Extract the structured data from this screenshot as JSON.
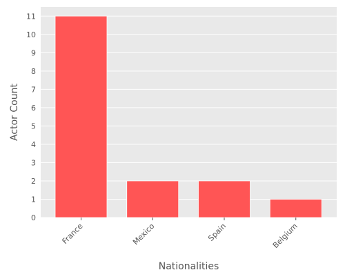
{
  "chart_data": {
    "type": "bar",
    "categories": [
      "France",
      "Mexico",
      "Spain",
      "Belgium"
    ],
    "values": [
      11,
      2,
      2,
      1
    ],
    "title": "",
    "xlabel": "Nationalities",
    "ylabel": "Actor Count",
    "ylim": [
      0,
      11.5
    ],
    "yticks": [
      0,
      1,
      2,
      3,
      4,
      5,
      6,
      7,
      8,
      9,
      10,
      11
    ],
    "grid": true,
    "legend": "none",
    "colors": {
      "bar": "#ff5555",
      "bar_edge": "#ffffff",
      "plot_background": "#e9e9e9",
      "grid": "#ffffff",
      "text": "#555555"
    }
  }
}
